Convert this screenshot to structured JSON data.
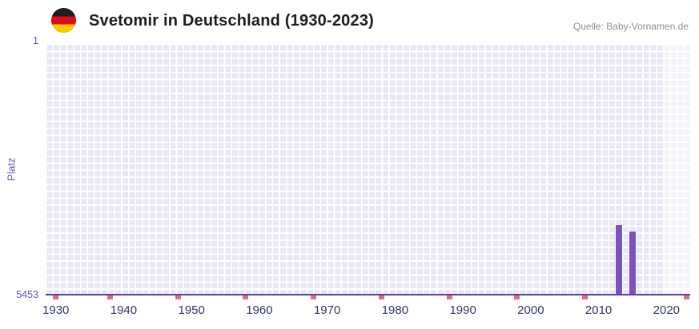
{
  "header": {
    "title": "Svetomir in Deutschland (1930-2023)",
    "source": "Quelle: Baby-Vornamen.de",
    "flag_icon": "german-flag-roundel"
  },
  "chart_data": {
    "type": "bar",
    "title": "Svetomir in Deutschland (1930-2023)",
    "source": "Quelle: Baby-Vornamen.de",
    "ylabel": "Platz",
    "xlabel": "",
    "y_axis": {
      "min": 1,
      "max": 5453,
      "inverted": true,
      "top_label": "1",
      "bottom_label": "5453"
    },
    "x_axis": {
      "domain_start": 1929,
      "domain_end": 2023,
      "tick_years": [
        1930,
        1940,
        1950,
        1960,
        1970,
        1980,
        1990,
        2000,
        2010,
        2020
      ]
    },
    "series": [
      {
        "name": "Platz",
        "points": [
          {
            "year": 2013,
            "rank": 3960
          },
          {
            "year": 2015,
            "rank": 4100
          }
        ]
      }
    ],
    "no_rank_marker_years": [
      1930,
      1938,
      1948,
      1958,
      1968,
      1978,
      1988,
      1998,
      2008,
      2023
    ],
    "highlight_band": {
      "start_year": 2020,
      "end_year": 2023
    },
    "grid": true,
    "legend": "none",
    "colors": {
      "bar": "#7a52c2",
      "plot_bg": "#e9e6f5",
      "grid": "#ffffff",
      "highlight_overlay": "rgba(255,255,255,0.5)",
      "axis": "#5a3fa5",
      "axis_label": "#6d51b2",
      "tick_label": "#333a5e",
      "marker": "#de6e78"
    }
  }
}
